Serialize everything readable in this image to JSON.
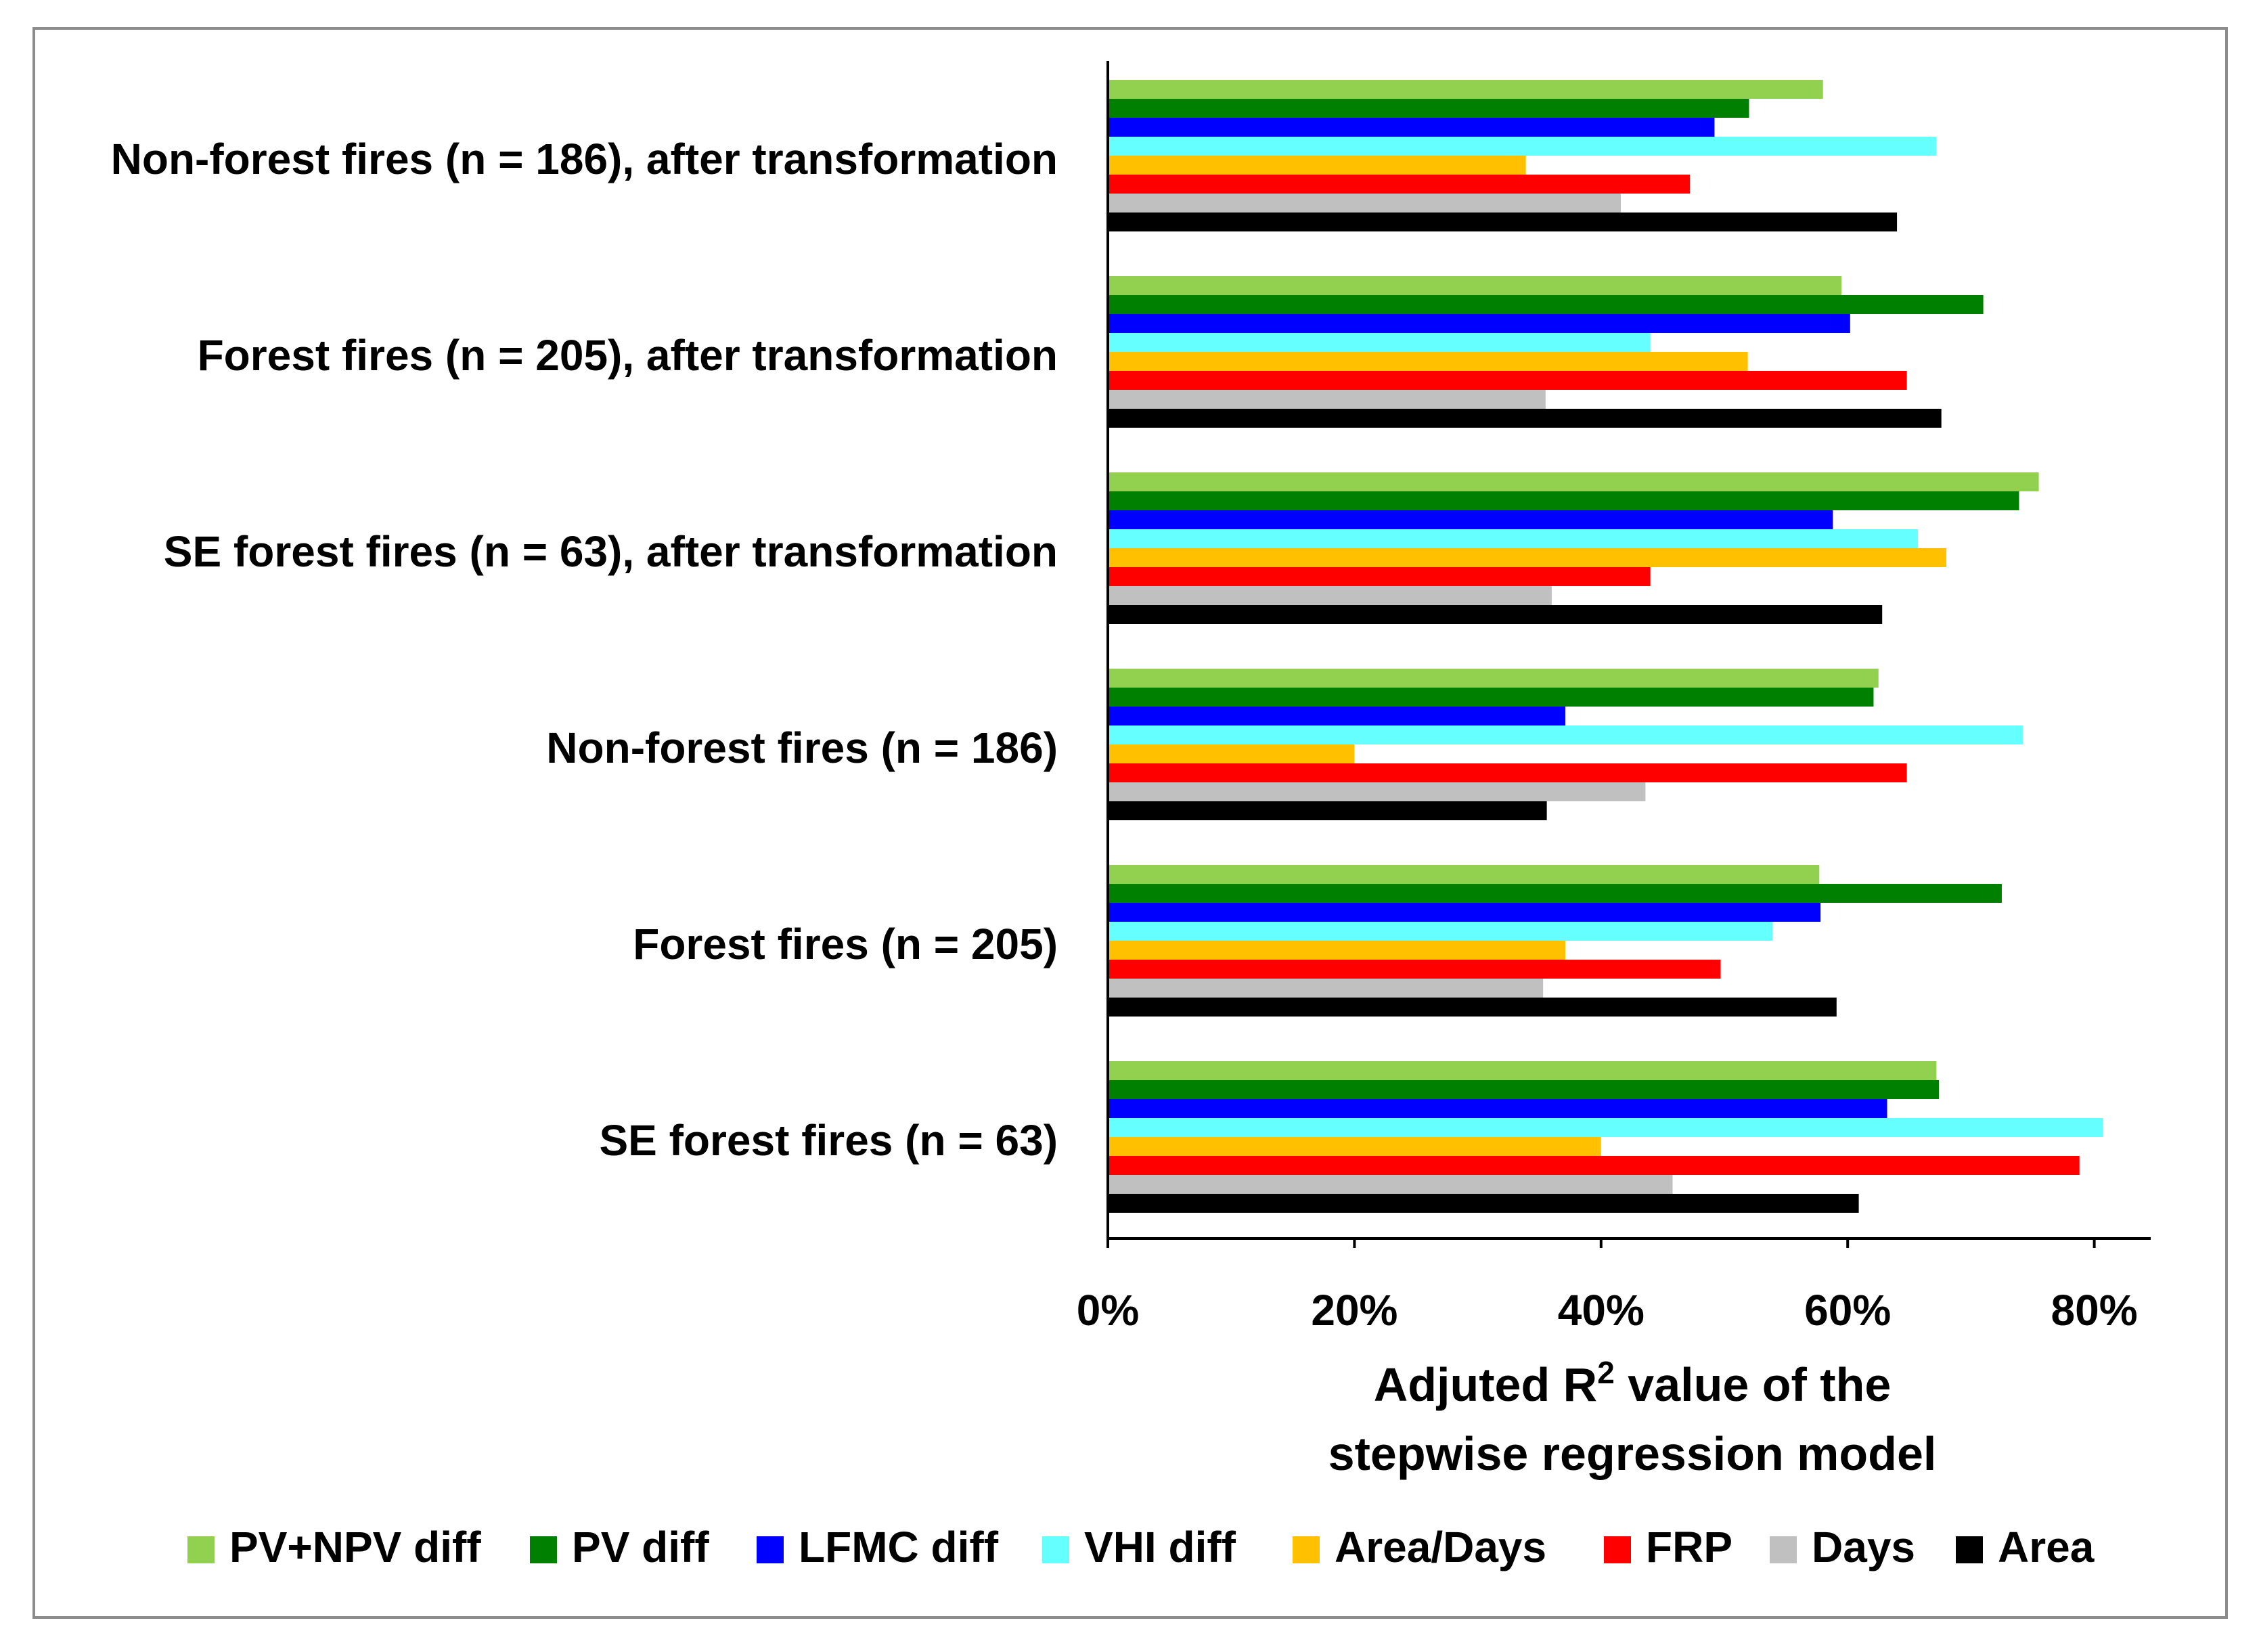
{
  "chart_data": {
    "type": "bar",
    "orientation": "horizontal",
    "title": "",
    "categories": [
      "Non-forest fires (n = 186), after transformation",
      "Forest fires (n = 205), after transformation",
      "SE forest fires (n = 63), after transformation",
      "Non-forest fires (n = 186)",
      "Forest fires (n = 205)",
      "SE forest fires (n = 63)"
    ],
    "series": [
      {
        "name": "PV+NPV diff",
        "color": "#92d050",
        "values": [
          0.58,
          0.595,
          0.755,
          0.625,
          0.577,
          0.672
        ]
      },
      {
        "name": "PV diff",
        "color": "#008000",
        "values": [
          0.52,
          0.71,
          0.739,
          0.621,
          0.725,
          0.674
        ]
      },
      {
        "name": "LFMC diff",
        "color": "#0000ff",
        "values": [
          0.492,
          0.602,
          0.588,
          0.371,
          0.578,
          0.632
        ]
      },
      {
        "name": "VHI diff",
        "color": "#66ffff",
        "values": [
          0.672,
          0.44,
          0.657,
          0.742,
          0.539,
          0.807
        ]
      },
      {
        "name": "Area/Days",
        "color": "#ffc000",
        "values": [
          0.339,
          0.519,
          0.68,
          0.2,
          0.371,
          0.4
        ]
      },
      {
        "name": "FRP",
        "color": "#ff0000",
        "values": [
          0.472,
          0.648,
          0.44,
          0.648,
          0.497,
          0.788
        ]
      },
      {
        "name": "Days",
        "color": "#c0c0c0",
        "values": [
          0.416,
          0.355,
          0.36,
          0.436,
          0.353,
          0.458
        ]
      },
      {
        "name": "Area",
        "color": "#000000",
        "values": [
          0.64,
          0.676,
          0.628,
          0.356,
          0.591,
          0.609
        ]
      }
    ],
    "xlim": [
      0,
      0.85
    ],
    "xticks": [
      {
        "value": 0,
        "label": "0%"
      },
      {
        "value": 0.2,
        "label": "20%"
      },
      {
        "value": 0.4,
        "label": "40%"
      },
      {
        "value": 0.6,
        "label": "60%"
      },
      {
        "value": 0.8,
        "label": "80%"
      }
    ],
    "xlabel_line1_prefix": "Adjuted R",
    "xlabel_superscript": "2",
    "xlabel_line1_suffix": " value of the",
    "xlabel_line2": "stepwise regression model",
    "ylabel": "",
    "grid": false,
    "legend_position": "bottom"
  }
}
